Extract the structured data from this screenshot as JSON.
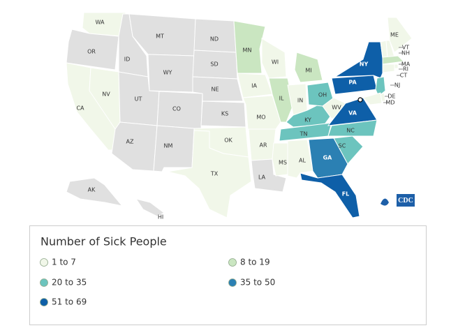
{
  "map": {
    "states": [
      {
        "abbr": "WA",
        "color": "#f1f7e9"
      },
      {
        "abbr": "OR",
        "color": "#e0e0e0"
      },
      {
        "abbr": "CA",
        "color": "#f1f7e9"
      },
      {
        "abbr": "NV",
        "color": "#f1f7e9"
      },
      {
        "abbr": "ID",
        "color": "#e0e0e0"
      },
      {
        "abbr": "MT",
        "color": "#e0e0e0"
      },
      {
        "abbr": "WY",
        "color": "#e0e0e0"
      },
      {
        "abbr": "UT",
        "color": "#e0e0e0"
      },
      {
        "abbr": "CO",
        "color": "#e0e0e0"
      },
      {
        "abbr": "AZ",
        "color": "#e0e0e0"
      },
      {
        "abbr": "NM",
        "color": "#e0e0e0"
      },
      {
        "abbr": "ND",
        "color": "#e0e0e0"
      },
      {
        "abbr": "SD",
        "color": "#e0e0e0"
      },
      {
        "abbr": "NE",
        "color": "#e0e0e0"
      },
      {
        "abbr": "KS",
        "color": "#e0e0e0"
      },
      {
        "abbr": "OK",
        "color": "#f1f7e9"
      },
      {
        "abbr": "TX",
        "color": "#f1f7e9"
      },
      {
        "abbr": "MN",
        "color": "#cae6c1"
      },
      {
        "abbr": "IA",
        "color": "#f1f7e9"
      },
      {
        "abbr": "MO",
        "color": "#f1f7e9"
      },
      {
        "abbr": "AR",
        "color": "#f1f7e9"
      },
      {
        "abbr": "LA",
        "color": "#e0e0e0"
      },
      {
        "abbr": "WI",
        "color": "#f1f7e9"
      },
      {
        "abbr": "IL",
        "color": "#cae6c1"
      },
      {
        "abbr": "MS",
        "color": "#f1f7e9"
      },
      {
        "abbr": "MI",
        "color": "#cae6c1"
      },
      {
        "abbr": "IN",
        "color": "#f1f7e9"
      },
      {
        "abbr": "KY",
        "color": "#6cc4be"
      },
      {
        "abbr": "TN",
        "color": "#6cc4be"
      },
      {
        "abbr": "AL",
        "color": "#f1f7e9"
      },
      {
        "abbr": "OH",
        "color": "#6cc4be"
      },
      {
        "abbr": "WV",
        "color": "#f1f7e9"
      },
      {
        "abbr": "VA",
        "color": "#0e5fa8"
      },
      {
        "abbr": "NC",
        "color": "#6cc4be"
      },
      {
        "abbr": "SC",
        "color": "#6cc4be"
      },
      {
        "abbr": "GA",
        "color": "#2b80b3"
      },
      {
        "abbr": "FL",
        "color": "#0e5fa8"
      },
      {
        "abbr": "PA",
        "color": "#0e5fa8"
      },
      {
        "abbr": "NY",
        "color": "#0e5fa8"
      },
      {
        "abbr": "ME",
        "color": "#f1f7e9"
      },
      {
        "abbr": "VT",
        "color": "#f1f7e9"
      },
      {
        "abbr": "NH",
        "color": "#f1f7e9"
      },
      {
        "abbr": "MA",
        "color": "#cae6c1"
      },
      {
        "abbr": "RI",
        "color": "#f1f7e9"
      },
      {
        "abbr": "CT",
        "color": "#f1f7e9"
      },
      {
        "abbr": "NJ",
        "color": "#6cc4be"
      },
      {
        "abbr": "DE",
        "color": "#f1f7e9"
      },
      {
        "abbr": "MD",
        "color": "#f1f7e9"
      },
      {
        "abbr": "AK",
        "color": "#e0e0e0"
      },
      {
        "abbr": "HI",
        "color": "#e0e0e0"
      }
    ],
    "logo_text": "CDC"
  },
  "legend": {
    "title": "Number of Sick People",
    "items": [
      {
        "label": "1 to 7",
        "color": "#f1f7e9"
      },
      {
        "label": "8 to 19",
        "color": "#cae6c1"
      },
      {
        "label": "20 to 35",
        "color": "#6cc4be"
      },
      {
        "label": "35 to 50",
        "color": "#2b80b3"
      },
      {
        "label": "51 to 69",
        "color": "#0e5fa8"
      }
    ]
  }
}
